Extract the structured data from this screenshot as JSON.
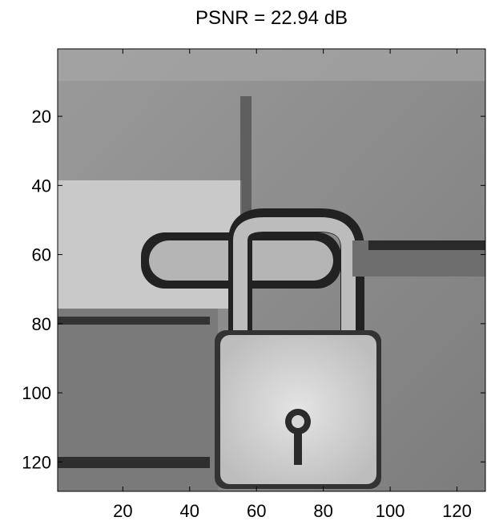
{
  "chart_data": {
    "type": "image",
    "title": "PSNR = 22.94 dB",
    "xlim": [
      0.5,
      128.5
    ],
    "ylim": [
      0.5,
      128.5
    ],
    "y_reversed": true,
    "xticks": [
      20,
      40,
      60,
      80,
      100,
      120
    ],
    "yticks": [
      20,
      40,
      60,
      80,
      100,
      120
    ]
  }
}
